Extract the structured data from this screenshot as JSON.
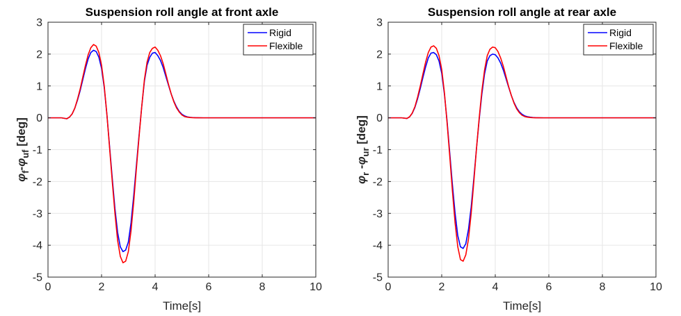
{
  "chart_data": [
    {
      "type": "line",
      "title": "Suspension roll angle at front axle",
      "xlabel": "Time[s]",
      "ylabel": {
        "phi1": "φ",
        "sub1": "f",
        "sep": "-",
        "phi2": "φ",
        "sub2": "uf",
        "unit": " [deg]"
      },
      "xlim": [
        0,
        10
      ],
      "ylim": [
        -5,
        3
      ],
      "xticks": [
        "0",
        "2",
        "4",
        "6",
        "8",
        "10"
      ],
      "yticks": [
        "3",
        "2",
        "1",
        "0",
        "-1",
        "-2",
        "-3",
        "-4",
        "-5"
      ],
      "grid": true,
      "legend_position": "top-right",
      "series": [
        {
          "name": "Rigid",
          "color": "#0000ff",
          "x": [
            0,
            0.5,
            0.7,
            0.8,
            0.9,
            1.0,
            1.1,
            1.2,
            1.3,
            1.4,
            1.5,
            1.6,
            1.7,
            1.8,
            1.9,
            2.0,
            2.1,
            2.2,
            2.3,
            2.4,
            2.5,
            2.6,
            2.7,
            2.8,
            2.9,
            3.0,
            3.1,
            3.2,
            3.3,
            3.4,
            3.5,
            3.6,
            3.7,
            3.8,
            3.9,
            4.0,
            4.1,
            4.2,
            4.3,
            4.4,
            4.5,
            4.6,
            4.7,
            4.8,
            4.9,
            5.0,
            5.1,
            5.2,
            5.3,
            5.4,
            5.5,
            5.6,
            5.8,
            6.0,
            6.5,
            7.0,
            8.0,
            9.0,
            10.0
          ],
          "y": [
            0,
            0,
            -0.03,
            0.02,
            0.12,
            0.3,
            0.55,
            0.85,
            1.2,
            1.55,
            1.85,
            2.05,
            2.12,
            2.08,
            1.9,
            1.55,
            0.95,
            0.1,
            -0.9,
            -1.9,
            -2.85,
            -3.6,
            -4.05,
            -4.2,
            -4.15,
            -3.9,
            -3.3,
            -2.45,
            -1.5,
            -0.55,
            0.35,
            1.15,
            1.65,
            1.9,
            2.03,
            2.05,
            1.95,
            1.8,
            1.58,
            1.3,
            1.02,
            0.75,
            0.52,
            0.34,
            0.2,
            0.11,
            0.06,
            0.03,
            0.015,
            0.008,
            0.004,
            0.002,
            0,
            0,
            0,
            0,
            0,
            0,
            0
          ]
        },
        {
          "name": "Flexible",
          "color": "#ff0000",
          "x": [
            0,
            0.5,
            0.7,
            0.8,
            0.9,
            1.0,
            1.1,
            1.2,
            1.3,
            1.4,
            1.5,
            1.6,
            1.7,
            1.8,
            1.9,
            2.0,
            2.1,
            2.2,
            2.3,
            2.4,
            2.5,
            2.6,
            2.7,
            2.8,
            2.9,
            3.0,
            3.1,
            3.2,
            3.3,
            3.4,
            3.5,
            3.6,
            3.7,
            3.8,
            3.9,
            4.0,
            4.1,
            4.2,
            4.3,
            4.4,
            4.5,
            4.6,
            4.7,
            4.8,
            4.9,
            5.0,
            5.1,
            5.2,
            5.3,
            5.4,
            5.5,
            5.6,
            5.8,
            6.0,
            6.5,
            7.0,
            8.0,
            9.0,
            10.0
          ],
          "y": [
            0,
            0,
            -0.03,
            0.02,
            0.12,
            0.3,
            0.58,
            0.9,
            1.28,
            1.65,
            1.98,
            2.2,
            2.3,
            2.25,
            2.05,
            1.65,
            1.0,
            0.1,
            -0.95,
            -2.0,
            -3.0,
            -3.85,
            -4.35,
            -4.55,
            -4.5,
            -4.2,
            -3.55,
            -2.65,
            -1.6,
            -0.6,
            0.35,
            1.2,
            1.75,
            2.05,
            2.18,
            2.22,
            2.12,
            1.95,
            1.7,
            1.38,
            1.05,
            0.75,
            0.5,
            0.31,
            0.18,
            0.09,
            0.04,
            0.02,
            0.01,
            0.004,
            0.002,
            0.001,
            0,
            0,
            0,
            0,
            0,
            0,
            0
          ]
        }
      ]
    },
    {
      "type": "line",
      "title": "Suspension roll angle at rear axle",
      "xlabel": "Time[s]",
      "ylabel": {
        "phi1": "φ",
        "sub1": "r",
        "sep": " -",
        "phi2": "φ",
        "sub2": "ur",
        "unit": " [deg]"
      },
      "xlim": [
        0,
        10
      ],
      "ylim": [
        -5,
        3
      ],
      "xticks": [
        "0",
        "2",
        "4",
        "6",
        "8",
        "10"
      ],
      "yticks": [
        "3",
        "2",
        "1",
        "0",
        "-1",
        "-2",
        "-3",
        "-4",
        "-5"
      ],
      "grid": true,
      "legend_position": "top-right",
      "series": [
        {
          "name": "Rigid",
          "color": "#0000ff",
          "x": [
            0,
            0.5,
            0.7,
            0.8,
            0.9,
            1.0,
            1.1,
            1.2,
            1.3,
            1.4,
            1.5,
            1.6,
            1.7,
            1.8,
            1.9,
            2.0,
            2.1,
            2.2,
            2.3,
            2.4,
            2.5,
            2.6,
            2.7,
            2.8,
            2.9,
            3.0,
            3.1,
            3.2,
            3.3,
            3.4,
            3.5,
            3.6,
            3.7,
            3.8,
            3.9,
            4.0,
            4.1,
            4.2,
            4.3,
            4.4,
            4.5,
            4.6,
            4.7,
            4.8,
            4.9,
            5.0,
            5.1,
            5.2,
            5.3,
            5.4,
            5.5,
            5.6,
            5.8,
            6.0,
            6.5,
            7.0,
            8.0,
            9.0,
            10.0
          ],
          "y": [
            0,
            0,
            -0.02,
            0.03,
            0.14,
            0.33,
            0.6,
            0.92,
            1.27,
            1.6,
            1.88,
            2.03,
            2.05,
            1.98,
            1.78,
            1.4,
            0.75,
            -0.1,
            -1.1,
            -2.1,
            -3.0,
            -3.7,
            -4.05,
            -4.1,
            -3.95,
            -3.5,
            -2.8,
            -1.9,
            -0.95,
            -0.05,
            0.75,
            1.38,
            1.78,
            1.95,
            2.0,
            1.98,
            1.88,
            1.72,
            1.5,
            1.23,
            0.96,
            0.7,
            0.48,
            0.31,
            0.19,
            0.11,
            0.06,
            0.035,
            0.02,
            0.01,
            0.005,
            0.002,
            0,
            0,
            0,
            0,
            0,
            0,
            0
          ]
        },
        {
          "name": "Flexible",
          "color": "#ff0000",
          "x": [
            0,
            0.5,
            0.7,
            0.8,
            0.9,
            1.0,
            1.1,
            1.2,
            1.3,
            1.4,
            1.5,
            1.6,
            1.7,
            1.8,
            1.9,
            2.0,
            2.1,
            2.2,
            2.3,
            2.4,
            2.5,
            2.6,
            2.7,
            2.8,
            2.9,
            3.0,
            3.1,
            3.2,
            3.3,
            3.4,
            3.5,
            3.6,
            3.7,
            3.8,
            3.9,
            4.0,
            4.1,
            4.2,
            4.3,
            4.4,
            4.5,
            4.6,
            4.7,
            4.8,
            4.9,
            5.0,
            5.1,
            5.2,
            5.3,
            5.4,
            5.5,
            5.6,
            5.8,
            6.0,
            6.5,
            7.0,
            8.0,
            9.0,
            10.0
          ],
          "y": [
            0,
            0,
            -0.02,
            0.03,
            0.15,
            0.35,
            0.65,
            1.0,
            1.38,
            1.75,
            2.05,
            2.22,
            2.26,
            2.18,
            1.95,
            1.52,
            0.8,
            -0.15,
            -1.2,
            -2.3,
            -3.3,
            -4.05,
            -4.45,
            -4.5,
            -4.3,
            -3.8,
            -3.0,
            -2.0,
            -0.95,
            0.0,
            0.85,
            1.5,
            1.95,
            2.15,
            2.22,
            2.2,
            2.08,
            1.88,
            1.62,
            1.3,
            0.98,
            0.7,
            0.46,
            0.28,
            0.16,
            0.08,
            0.04,
            0.02,
            0.01,
            0.005,
            0.002,
            0.001,
            0,
            0,
            0,
            0,
            0,
            0,
            0
          ]
        }
      ]
    }
  ]
}
